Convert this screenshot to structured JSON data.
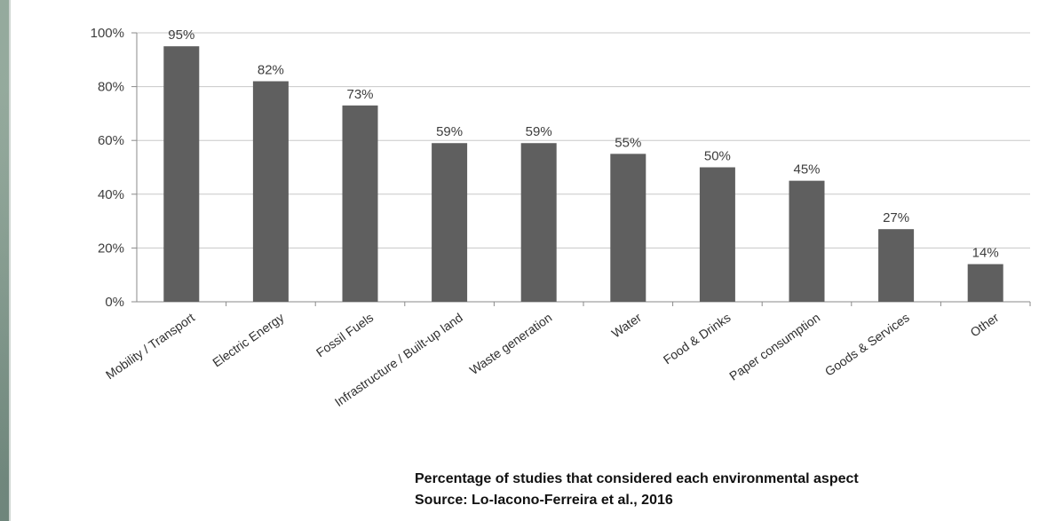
{
  "caption": {
    "line1": "Percentage of studies that considered each environmental aspect",
    "line2": "Source: Lo-Iacono-Ferreira et al., 2016"
  },
  "colors": {
    "bar": "#5f5f5f",
    "grid": "#c8c8c8",
    "axis": "#8a8a8a"
  },
  "chart_data": {
    "type": "bar",
    "categories": [
      "Mobility / Transport",
      "Electric Energy",
      "Fossil Fuels",
      "Infrastructure / Built-up land",
      "Waste generation",
      "Water",
      "Food & Drinks",
      "Paper consumption",
      "Goods & Services",
      "Other"
    ],
    "values": [
      95,
      82,
      73,
      59,
      59,
      55,
      50,
      45,
      27,
      14
    ],
    "data_labels": [
      "95%",
      "82%",
      "73%",
      "59%",
      "59%",
      "55%",
      "50%",
      "45%",
      "27%",
      "14%"
    ],
    "yticks": [
      "0%",
      "20%",
      "40%",
      "60%",
      "80%",
      "100%"
    ],
    "ylim": [
      0,
      100
    ],
    "grid": true,
    "legend": "none"
  }
}
